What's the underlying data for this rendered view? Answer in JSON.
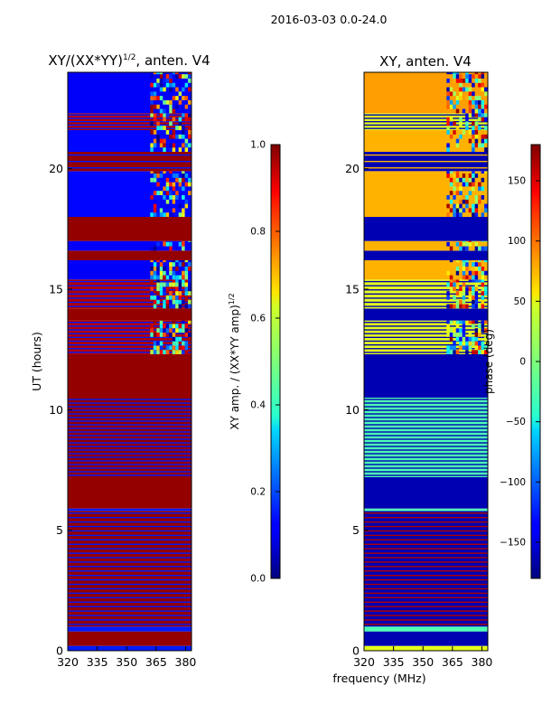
{
  "figure_title": "2016-03-03 0.0-24.0",
  "shared_xlabel": "frequency (MHz)",
  "chart_data": [
    {
      "type": "heatmap",
      "title": "XY/(XX*YY)",
      "title_sup": "1/2",
      "title_suffix": ", anten. V4",
      "xlabel": "",
      "ylabel": "UT (hours)",
      "xlim": [
        320,
        383
      ],
      "ylim": [
        0,
        24
      ],
      "xticks": [
        320,
        335,
        350,
        365,
        380
      ],
      "yticks": [
        0,
        5,
        10,
        15,
        20
      ],
      "colorbar": {
        "label": "XY amp. / (XX*YY amp)",
        "label_sup": "1/2",
        "range": [
          0.0,
          1.0
        ],
        "ticks": [
          "0.0",
          "0.2",
          "0.4",
          "0.6",
          "0.8",
          "1.0"
        ],
        "colormap": "jet"
      },
      "bands": [
        {
          "y0": 0.0,
          "y1": 0.2,
          "v": 0.15
        },
        {
          "y0": 0.2,
          "y1": 0.8,
          "v": 0.98
        },
        {
          "y0": 0.8,
          "y1": 1.0,
          "v": 0.15
        },
        {
          "y0": 1.0,
          "y1": 5.8,
          "v": 0.98,
          "lines": 26
        },
        {
          "y0": 5.8,
          "y1": 5.9,
          "v": 0.15
        },
        {
          "y0": 5.9,
          "y1": 7.2,
          "v": 0.98
        },
        {
          "y0": 7.2,
          "y1": 10.5,
          "v": 0.98,
          "lines": 22
        },
        {
          "y0": 10.5,
          "y1": 12.3,
          "v": 0.98
        },
        {
          "y0": 12.3,
          "y1": 13.7,
          "v": 0.95,
          "lines": 9,
          "rfi": 0.6
        },
        {
          "y0": 13.7,
          "y1": 14.2,
          "v": 0.98
        },
        {
          "y0": 14.2,
          "y1": 15.4,
          "v": 0.95,
          "lines": 7,
          "rfi": 0.7
        },
        {
          "y0": 15.4,
          "y1": 16.2,
          "v": 0.12,
          "rfi": 0.55
        },
        {
          "y0": 16.2,
          "y1": 16.6,
          "v": 0.98
        },
        {
          "y0": 16.6,
          "y1": 17.0,
          "v": 0.12,
          "rfi": 0.5
        },
        {
          "y0": 17.0,
          "y1": 18.0,
          "v": 0.98
        },
        {
          "y0": 18.0,
          "y1": 19.9,
          "v": 0.13,
          "rfi": 0.5
        },
        {
          "y0": 19.9,
          "y1": 20.7,
          "v": 0.98,
          "lines": 3
        },
        {
          "y0": 20.7,
          "y1": 21.6,
          "v": 0.13,
          "rfi": 0.5
        },
        {
          "y0": 21.6,
          "y1": 22.3,
          "v": 0.95,
          "lines": 5,
          "rfi": 0.5
        },
        {
          "y0": 22.3,
          "y1": 24.0,
          "v": 0.12,
          "rfi": 0.55
        }
      ]
    },
    {
      "type": "heatmap",
      "title": "XY, anten. V4",
      "xlabel": "frequency (MHz)",
      "ylabel": "",
      "xlim": [
        320,
        383
      ],
      "ylim": [
        0,
        24
      ],
      "xticks": [
        320,
        335,
        350,
        365,
        380
      ],
      "yticks": [
        0,
        5,
        10,
        15,
        20
      ],
      "colorbar": {
        "label": "phase (deg)",
        "range": [
          -180,
          180
        ],
        "ticks": [
          "−150",
          "−100",
          "−50",
          "0",
          "50",
          "100",
          "150"
        ],
        "colormap": "jet"
      },
      "bands": [
        {
          "y0": 0.0,
          "y1": 0.2,
          "v": 0.6
        },
        {
          "y0": 0.2,
          "y1": 0.8,
          "v": 0.05
        },
        {
          "y0": 0.8,
          "y1": 1.0,
          "v": 0.45
        },
        {
          "y0": 1.0,
          "y1": 5.8,
          "v": 0.05,
          "lines": 26,
          "lv": 0.95
        },
        {
          "y0": 5.8,
          "y1": 5.9,
          "v": 0.45
        },
        {
          "y0": 5.9,
          "y1": 7.2,
          "v": 0.05
        },
        {
          "y0": 7.2,
          "y1": 10.5,
          "v": 0.45,
          "lines": 22,
          "lv": 0.05
        },
        {
          "y0": 10.5,
          "y1": 12.3,
          "v": 0.05
        },
        {
          "y0": 12.3,
          "y1": 13.7,
          "v": 0.6,
          "lines": 9,
          "lv": 0.05,
          "rfi": 0.6
        },
        {
          "y0": 13.7,
          "y1": 14.2,
          "v": 0.05
        },
        {
          "y0": 14.2,
          "y1": 15.4,
          "v": 0.6,
          "lines": 7,
          "lv": 0.05,
          "rfi": 0.7
        },
        {
          "y0": 15.4,
          "y1": 16.2,
          "v": 0.7,
          "rfi": 0.55
        },
        {
          "y0": 16.2,
          "y1": 16.6,
          "v": 0.05
        },
        {
          "y0": 16.6,
          "y1": 17.0,
          "v": 0.7,
          "rfi": 0.5
        },
        {
          "y0": 17.0,
          "y1": 18.0,
          "v": 0.05
        },
        {
          "y0": 18.0,
          "y1": 19.9,
          "v": 0.7,
          "rfi": 0.5
        },
        {
          "y0": 19.9,
          "y1": 20.7,
          "v": 0.05,
          "lines": 3,
          "lv": 0.7
        },
        {
          "y0": 20.7,
          "y1": 21.6,
          "v": 0.7,
          "rfi": 0.5
        },
        {
          "y0": 21.6,
          "y1": 22.3,
          "v": 0.6,
          "lines": 5,
          "lv": 0.05,
          "rfi": 0.5
        },
        {
          "y0": 22.3,
          "y1": 24.0,
          "v": 0.72,
          "rfi": 0.55
        }
      ]
    }
  ]
}
